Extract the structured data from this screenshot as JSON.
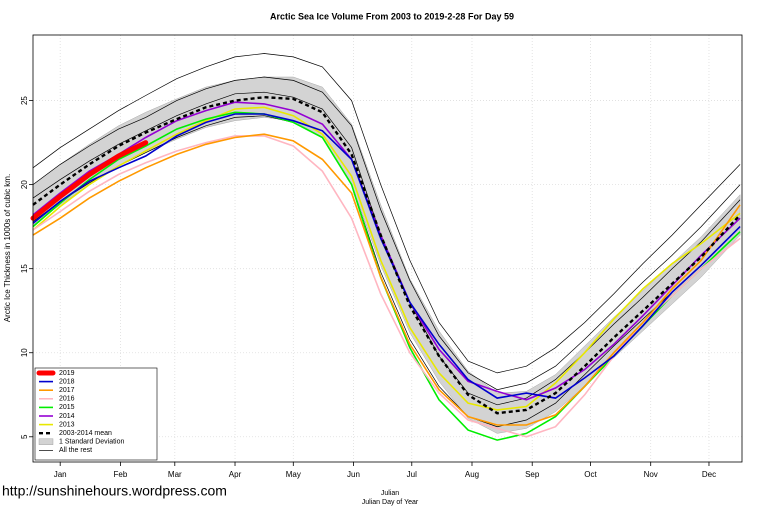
{
  "chart_data": {
    "type": "line",
    "title": "Arctic Sea Ice Volume From 2003 to 2019-2-28  For Day 59",
    "y_label": "Arctic Ice Thickness in 1000s of cubic km.",
    "x_labels": [
      "Julian",
      "Julian Day of Year"
    ],
    "source": "http://sunshinehours.wordpress.com",
    "xlim": [
      1,
      366
    ],
    "ylim": [
      3.5,
      28.9
    ],
    "xticks": [
      {
        "value": 15,
        "label": "Jan"
      },
      {
        "value": 46,
        "label": "Feb"
      },
      {
        "value": 74,
        "label": "Mar"
      },
      {
        "value": 105,
        "label": "Apr"
      },
      {
        "value": 135,
        "label": "May"
      },
      {
        "value": 166,
        "label": "Jun"
      },
      {
        "value": 196,
        "label": "Jul"
      },
      {
        "value": 227,
        "label": "Aug"
      },
      {
        "value": 258,
        "label": "Sep"
      },
      {
        "value": 288,
        "label": "Oct"
      },
      {
        "value": 319,
        "label": "Nov"
      },
      {
        "value": 349,
        "label": "Dec"
      }
    ],
    "yticks": [
      5,
      10,
      15,
      20,
      25
    ],
    "grid": true,
    "legend": "bottom left",
    "x": [
      1,
      15,
      30,
      45,
      59,
      75,
      90,
      105,
      120,
      135,
      150,
      165,
      180,
      195,
      210,
      225,
      240,
      255,
      270,
      285,
      300,
      315,
      330,
      345,
      365
    ],
    "series": [
      {
        "name": "2019",
        "color": "#ff0000",
        "style": "thick",
        "values": [
          18.0,
          19.3,
          20.6,
          21.7,
          22.5,
          null,
          null,
          null,
          null,
          null,
          null,
          null,
          null,
          null,
          null,
          null,
          null,
          null,
          null,
          null,
          null,
          null,
          null,
          null,
          null
        ]
      },
      {
        "name": "2018",
        "color": "#0000cd",
        "style": "line",
        "values": [
          17.7,
          19.0,
          20.2,
          21.0,
          21.7,
          22.9,
          23.7,
          24.2,
          24.2,
          23.8,
          23.2,
          21.5,
          16.8,
          13.0,
          10.5,
          8.4,
          7.3,
          7.6,
          7.3,
          8.5,
          9.8,
          11.6,
          13.6,
          15.2,
          17.5
        ]
      },
      {
        "name": "2017",
        "color": "#ff9900",
        "style": "line",
        "values": [
          17.0,
          18.0,
          19.2,
          20.2,
          21.0,
          21.8,
          22.4,
          22.8,
          23.0,
          22.6,
          21.5,
          19.5,
          14.5,
          10.5,
          7.8,
          6.2,
          5.7,
          5.7,
          6.3,
          8.0,
          10.0,
          11.8,
          13.8,
          15.5,
          18.8
        ]
      },
      {
        "name": "2016",
        "color": "#ffb6c1",
        "style": "line",
        "values": [
          17.3,
          18.4,
          19.6,
          20.6,
          21.3,
          22.0,
          22.5,
          22.9,
          22.9,
          22.3,
          20.8,
          18.0,
          13.5,
          10.0,
          7.6,
          6.0,
          5.5,
          5.0,
          5.6,
          7.5,
          9.8,
          11.8,
          13.4,
          15.0,
          16.8
        ]
      },
      {
        "name": "2015",
        "color": "#00ee00",
        "style": "line",
        "values": [
          17.5,
          18.9,
          20.3,
          21.5,
          22.3,
          23.3,
          23.9,
          24.3,
          24.2,
          23.7,
          22.8,
          20.0,
          14.5,
          10.3,
          7.2,
          5.4,
          4.8,
          5.2,
          6.2,
          8.0,
          9.8,
          11.6,
          13.4,
          15.0,
          17.2
        ]
      },
      {
        "name": "2014",
        "color": "#9400d3",
        "style": "line",
        "values": [
          18.2,
          19.5,
          20.8,
          21.8,
          22.8,
          23.8,
          24.4,
          24.9,
          24.8,
          24.4,
          23.6,
          21.5,
          17.0,
          13.0,
          10.2,
          8.3,
          7.7,
          7.2,
          7.9,
          9.0,
          10.5,
          12.2,
          14.0,
          15.8,
          18.0
        ]
      },
      {
        "name": "2013",
        "color": "#e8e800",
        "style": "line",
        "values": [
          17.3,
          18.7,
          20.0,
          21.1,
          22.0,
          23.0,
          23.8,
          24.5,
          24.6,
          24.1,
          23.0,
          20.5,
          15.5,
          11.5,
          8.8,
          7.0,
          6.6,
          6.8,
          8.2,
          10.0,
          12.0,
          13.8,
          15.3,
          16.5,
          18.3
        ]
      },
      {
        "name": "2003-2014 mean",
        "color": "#000000",
        "style": "dashed",
        "values": [
          18.8,
          20.0,
          21.2,
          22.3,
          23.1,
          23.9,
          24.6,
          25.0,
          25.2,
          25.1,
          24.3,
          21.8,
          17.0,
          12.8,
          9.8,
          7.5,
          6.4,
          6.6,
          7.6,
          9.2,
          10.9,
          12.5,
          14.1,
          15.7,
          18.2
        ]
      },
      {
        "name": "1 Standard Deviation",
        "color": "#d3d3d3",
        "style": "band",
        "lower": [
          17.6,
          18.8,
          20.0,
          21.1,
          21.9,
          22.7,
          23.4,
          23.8,
          24.0,
          23.8,
          22.8,
          20.0,
          15.2,
          11.2,
          8.3,
          6.1,
          5.2,
          5.5,
          6.5,
          8.0,
          9.7,
          11.3,
          12.9,
          14.5,
          17.0
        ],
        "upper": [
          20.0,
          21.2,
          22.4,
          23.5,
          24.3,
          25.1,
          25.8,
          26.2,
          26.4,
          26.4,
          25.8,
          23.6,
          18.8,
          14.4,
          11.3,
          8.9,
          7.6,
          7.7,
          8.7,
          10.4,
          12.1,
          13.7,
          15.3,
          16.9,
          19.4
        ]
      },
      {
        "name": "All the rest",
        "color": "#000000",
        "style": "thin",
        "lines": [
          [
            21.0,
            22.2,
            23.3,
            24.4,
            25.3,
            26.3,
            27.0,
            27.6,
            27.8,
            27.6,
            27.0,
            25.0,
            20.0,
            15.5,
            11.8,
            9.5,
            8.8,
            9.2,
            10.3,
            11.8,
            13.5,
            15.3,
            17.0,
            18.8,
            21.2
          ],
          [
            20.0,
            21.2,
            22.3,
            23.3,
            24.0,
            25.0,
            25.7,
            26.2,
            26.4,
            26.2,
            25.5,
            23.5,
            18.5,
            14.3,
            11.0,
            8.8,
            7.8,
            8.2,
            9.2,
            10.8,
            12.5,
            14.2,
            15.8,
            17.5,
            20.0
          ],
          [
            19.2,
            20.3,
            21.4,
            22.4,
            23.2,
            24.1,
            24.8,
            25.4,
            25.5,
            25.2,
            24.5,
            22.2,
            17.0,
            13.0,
            9.8,
            7.6,
            6.9,
            7.3,
            8.4,
            10.0,
            11.7,
            13.3,
            15.0,
            16.6,
            19.1
          ],
          [
            17.8,
            19.0,
            20.1,
            21.1,
            21.9,
            22.8,
            23.5,
            24.0,
            24.1,
            23.7,
            22.8,
            20.0,
            14.8,
            10.8,
            8.0,
            6.2,
            5.6,
            6.0,
            7.0,
            8.7,
            10.4,
            12.0,
            13.6,
            15.2,
            17.5
          ]
        ]
      }
    ]
  }
}
